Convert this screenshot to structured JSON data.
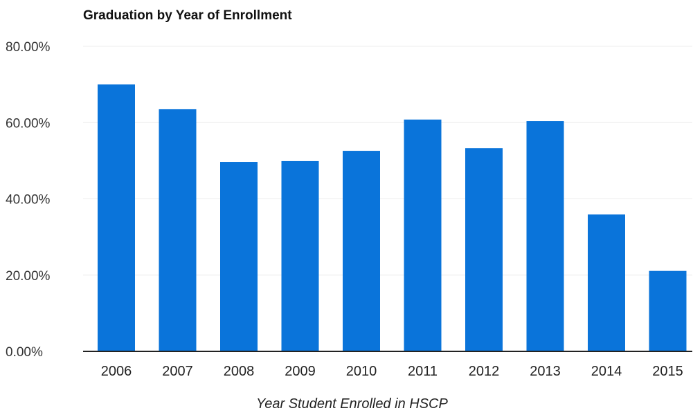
{
  "chart_data": {
    "type": "bar",
    "title": "Graduation by Year of Enrollment",
    "xlabel": "Year Student Enrolled in HSCP",
    "ylabel": "",
    "categories": [
      "2006",
      "2007",
      "2008",
      "2009",
      "2010",
      "2011",
      "2012",
      "2013",
      "2014",
      "2015"
    ],
    "values": [
      70.0,
      63.5,
      49.7,
      49.9,
      52.6,
      60.8,
      53.3,
      60.4,
      35.9,
      21.1
    ],
    "value_format": "percent",
    "ylim": [
      0,
      80
    ],
    "yticks": [
      "0.00%",
      "20.00%",
      "40.00%",
      "60.00%",
      "80.00%"
    ],
    "ytick_values": [
      0,
      20,
      40,
      60,
      80
    ],
    "grid": true,
    "legend": "none",
    "colors": {
      "bar": "#0a74da",
      "grid": "#ececec",
      "axis": "#222222"
    }
  }
}
